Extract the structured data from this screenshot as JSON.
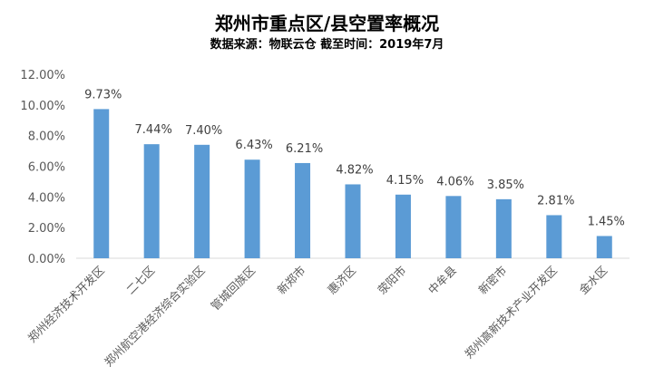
{
  "chart_data": {
    "type": "bar",
    "title": "郑州市重点区/县空置率概况",
    "subtitle": "数据来源：物联云仓  截至时间：2019年7月",
    "categories": [
      "郑州经济技术开发区",
      "二七区",
      "郑州航空港经济综合实验区",
      "管城回族区",
      "新郑市",
      "惠济区",
      "荥阳市",
      "中牟县",
      "新密市",
      "郑州高新技术产业开发区",
      "金水区"
    ],
    "values": [
      9.73,
      7.44,
      7.4,
      6.43,
      6.21,
      4.82,
      4.15,
      4.06,
      3.85,
      2.81,
      1.45
    ],
    "data_labels": [
      "9.73%",
      "7.44%",
      "7.40%",
      "6.43%",
      "6.21%",
      "4.82%",
      "4.15%",
      "4.06%",
      "3.85%",
      "2.81%",
      "1.45%"
    ],
    "y_ticks": [
      "0.00%",
      "2.00%",
      "4.00%",
      "6.00%",
      "8.00%",
      "10.00%",
      "12.00%"
    ],
    "ylim": [
      0,
      12
    ],
    "xlabel": "",
    "ylabel": "",
    "grid": false,
    "bar_color": "#5B9BD5"
  }
}
